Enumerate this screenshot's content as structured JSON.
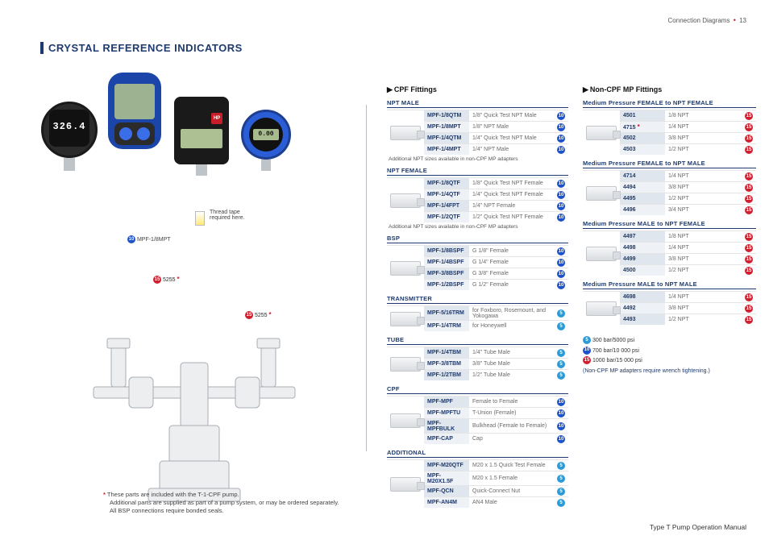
{
  "header": {
    "left": "Connection Diagrams",
    "page": "13"
  },
  "section_title": "CRYSTAL REFERENCE INDICATORS",
  "footer_right": "Type T Pump Operation Manual",
  "footer_notes": {
    "l1": "These parts are included with the T-1-CPF pump.",
    "l2": "Additional parts are supplied as part of a pump system, or may be ordered separately.",
    "l3": "All BSP connections require bonded seals."
  },
  "gauge1_display": "326.4",
  "gauge4_display": "0.00",
  "g3_hp": "HP",
  "thread_tape_l1": "Thread tape",
  "thread_tape_l2": "required here.",
  "mpf_label": "MPF-1/8MPT",
  "diag_5255_a": "5255",
  "diag_5255_b": "5255",
  "cpf_title": "CPF Fittings",
  "noncpf_title": "Non-CPF MP Fittings",
  "foot_avail": "Additional NPT sizes available in non-CPF MP adapters",
  "groupsA": {
    "g1": {
      "label": "NPT MALE",
      "rows": [
        {
          "pn": "MPF-1/8QTM",
          "desc": "1/8\" Quick Test NPT Male",
          "icons": [
            "10"
          ]
        },
        {
          "pn": "MPF-1/8MPT",
          "desc": "1/8\" NPT Male",
          "icons": [
            "10"
          ]
        },
        {
          "pn": "MPF-1/4QTM",
          "desc": "1/4\" Quick Test NPT Male",
          "icons": [
            "10"
          ]
        },
        {
          "pn": "MPF-1/4MPT",
          "desc": "1/4\" NPT Male",
          "icons": [
            "10"
          ]
        }
      ]
    },
    "g2": {
      "label": "NPT FEMALE",
      "rows": [
        {
          "pn": "MPF-1/8QTF",
          "desc": "1/8\" Quick Test NPT Female",
          "icons": [
            "10"
          ]
        },
        {
          "pn": "MPF-1/4QTF",
          "desc": "1/4\" Quick Test NPT Female",
          "icons": [
            "10"
          ]
        },
        {
          "pn": "MPF-1/4FPT",
          "desc": "1/4\" NPT Female",
          "icons": [
            "10"
          ]
        },
        {
          "pn": "MPF-1/2QTF",
          "desc": "1/2\" Quick Test NPT Female",
          "icons": [
            "10"
          ]
        }
      ]
    },
    "g3": {
      "label": "BSP",
      "rows": [
        {
          "pn": "MPF-1/8BSPF",
          "desc": "G 1/8\" Female",
          "icons": [
            "10"
          ]
        },
        {
          "pn": "MPF-1/4BSPF",
          "desc": "G 1/4\" Female",
          "icons": [
            "10"
          ]
        },
        {
          "pn": "MPF-3/8BSPF",
          "desc": "G 3/8\" Female",
          "icons": [
            "10"
          ]
        },
        {
          "pn": "MPF-1/2BSPF",
          "desc": "G 1/2\" Female",
          "icons": [
            "10"
          ]
        }
      ]
    },
    "g4": {
      "label": "TRANSMITTER",
      "rows": [
        {
          "pn": "MPF-5/16TRM",
          "desc": "for Foxboro, Rosemount, and Yokogawa",
          "icons": [
            "5"
          ]
        },
        {
          "pn": "MPF-1/4TRM",
          "desc": "for Honeywell",
          "icons": [
            "5"
          ]
        }
      ]
    },
    "g5": {
      "label": "TUBE",
      "rows": [
        {
          "pn": "MPF-1/4TBM",
          "desc": "1/4\" Tube Male",
          "icons": [
            "5"
          ]
        },
        {
          "pn": "MPF-3/8TBM",
          "desc": "3/8\" Tube Male",
          "icons": [
            "5"
          ]
        },
        {
          "pn": "MPF-1/2TBM",
          "desc": "1/2\" Tube Male",
          "icons": [
            "5"
          ]
        }
      ]
    },
    "g6": {
      "label": "CPF",
      "rows": [
        {
          "pn": "MPF-MPF",
          "desc": "Female to Female",
          "icons": [
            "10"
          ]
        },
        {
          "pn": "MPF-MPFTU",
          "desc": "T-Union (Female)",
          "icons": [
            "10"
          ]
        },
        {
          "pn": "MPF-MPFBULK",
          "desc": "Bulkhead (Female to Female)",
          "icons": [
            "10"
          ]
        },
        {
          "pn": "MPF-CAP",
          "desc": "Cap",
          "icons": [
            "10"
          ]
        }
      ]
    },
    "g7": {
      "label": "ADDITIONAL",
      "rows": [
        {
          "pn": "MPF-M20QTF",
          "desc": "M20 x 1.5 Quick Test Female",
          "icons": [
            "5"
          ]
        },
        {
          "pn": "MPF-M20X1.5F",
          "desc": "M20 x 1.5 Female",
          "icons": [
            "5"
          ]
        },
        {
          "pn": "MPF-QCN",
          "desc": "Quick-Connect Nut",
          "icons": [
            "5"
          ]
        },
        {
          "pn": "MPF-AN4M",
          "desc": "AN4 Male",
          "icons": [
            "5"
          ]
        }
      ]
    }
  },
  "groupsB": {
    "g1": {
      "label": "Medium Pressure FEMALE to NPT FEMALE",
      "rows": [
        {
          "pn": "4501",
          "desc": "1/8 NPT",
          "icons": [
            "15"
          ]
        },
        {
          "pn": "4715",
          "desc": "1/4 NPT",
          "icons": [
            "15"
          ],
          "star": true
        },
        {
          "pn": "4502",
          "desc": "3/8 NPT",
          "icons": [
            "15"
          ]
        },
        {
          "pn": "4503",
          "desc": "1/2 NPT",
          "icons": [
            "15"
          ]
        }
      ]
    },
    "g2": {
      "label": "Medium Pressure FEMALE to NPT MALE",
      "rows": [
        {
          "pn": "4714",
          "desc": "1/4 NPT",
          "icons": [
            "15"
          ]
        },
        {
          "pn": "4494",
          "desc": "3/8 NPT",
          "icons": [
            "15"
          ]
        },
        {
          "pn": "4495",
          "desc": "1/2 NPT",
          "icons": [
            "15"
          ]
        },
        {
          "pn": "4496",
          "desc": "3/4 NPT",
          "icons": [
            "15"
          ]
        }
      ]
    },
    "g3": {
      "label": "Medium Pressure MALE to NPT FEMALE",
      "rows": [
        {
          "pn": "4497",
          "desc": "1/8 NPT",
          "icons": [
            "15"
          ]
        },
        {
          "pn": "4498",
          "desc": "1/4 NPT",
          "icons": [
            "15"
          ]
        },
        {
          "pn": "4499",
          "desc": "3/8 NPT",
          "icons": [
            "15"
          ]
        },
        {
          "pn": "4500",
          "desc": "1/2 NPT",
          "icons": [
            "15"
          ]
        }
      ]
    },
    "g4": {
      "label": "Medium Pressure MALE to NPT MALE",
      "rows": [
        {
          "pn": "4698",
          "desc": "1/4 NPT",
          "icons": [
            "15"
          ]
        },
        {
          "pn": "4492",
          "desc": "3/8 NPT",
          "icons": [
            "15"
          ]
        },
        {
          "pn": "4493",
          "desc": "1/2 NPT",
          "icons": [
            "15"
          ]
        }
      ]
    }
  },
  "legend": {
    "l1": "300 bar/5000 psi",
    "l2": "700 bar/10 000 psi",
    "l3": "1000 bar/15 000 psi",
    "note": "(Non-CPF MP adapters require wrench tightening.)"
  }
}
